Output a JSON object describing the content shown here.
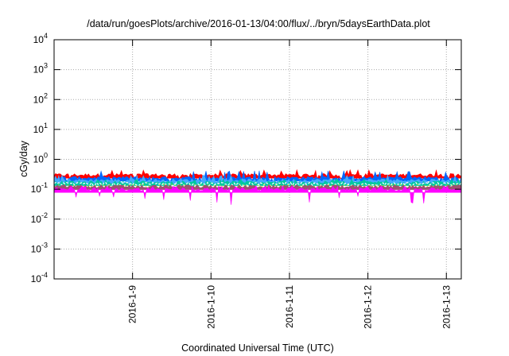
{
  "chart_data": {
    "type": "area",
    "title": "/data/run/goesPlots/archive/2016-01-13/04:00/flux/../bryn/5daysEarthData.plot",
    "xlabel": "Coordinated Universal Time (UTC)",
    "ylabel": "cGy/day",
    "yscale": "log",
    "ylim": [
      0.0001,
      10000
    ],
    "xlim_days": [
      8.0,
      13.19
    ],
    "y_ticks": [
      {
        "value": 0.0001,
        "base": "10",
        "exp": "-4"
      },
      {
        "value": 0.001,
        "base": "10",
        "exp": "-3"
      },
      {
        "value": 0.01,
        "base": "10",
        "exp": "-2"
      },
      {
        "value": 0.1,
        "base": "10",
        "exp": "-1"
      },
      {
        "value": 1,
        "base": "10",
        "exp": "0"
      },
      {
        "value": 10,
        "base": "10",
        "exp": "1"
      },
      {
        "value": 100,
        "base": "10",
        "exp": "2"
      },
      {
        "value": 1000,
        "base": "10",
        "exp": "3"
      },
      {
        "value": 10000,
        "base": "10",
        "exp": "4"
      }
    ],
    "x_ticks": [
      {
        "day": 9,
        "label": "2016-1-9"
      },
      {
        "day": 10,
        "label": "2016-1-10"
      },
      {
        "day": 11,
        "label": "2016-1-11"
      },
      {
        "day": 12,
        "label": "2016-1-12"
      },
      {
        "day": 13,
        "label": "2016-1-13"
      }
    ],
    "grid": true,
    "series": [
      {
        "name": "red",
        "color": "#ff0000",
        "typical": 0.3,
        "min": 0.22,
        "max": 0.45
      },
      {
        "name": "blue",
        "color": "#0066ff",
        "typical": 0.24,
        "min": 0.17,
        "max": 0.42
      },
      {
        "name": "light-blue",
        "color": "#44aaff",
        "typical": 0.2,
        "min": 0.15,
        "max": 0.3
      },
      {
        "name": "teal",
        "color": "#00c8a0",
        "typical": 0.17,
        "min": 0.13,
        "max": 0.22
      },
      {
        "name": "white-dashed",
        "color": "#ffffff",
        "typical": 0.15,
        "min": 0.13,
        "max": 0.17
      },
      {
        "name": "yellow",
        "color": "#e0e000",
        "typical": 0.13,
        "min": 0.12,
        "max": 0.14
      },
      {
        "name": "brown",
        "color": "#a05070",
        "typical": 0.125,
        "min": 0.11,
        "max": 0.14
      },
      {
        "name": "magenta",
        "color": "#ff00ff",
        "typical": 0.1,
        "min": 0.03,
        "max": 0.13
      }
    ]
  }
}
